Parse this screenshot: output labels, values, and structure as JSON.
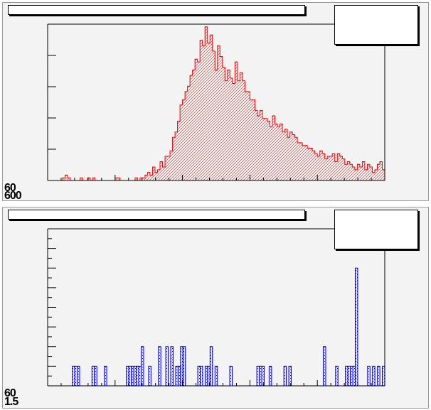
{
  "chart_data": [
    {
      "type": "bar",
      "style": "histogram",
      "color": "#ff0000",
      "fill_pattern": "diagonal-hatch",
      "title": "",
      "xlabel": "",
      "ylabel": "",
      "corner_labels": [
        "60",
        "600"
      ],
      "ylim": [
        0,
        58
      ],
      "values": [
        0,
        0,
        0,
        0,
        0,
        0,
        1,
        2,
        1,
        0,
        0,
        0,
        0,
        1,
        0,
        0,
        1,
        0,
        1,
        0,
        0,
        0,
        0,
        0,
        0,
        0,
        0,
        1,
        1,
        0,
        0,
        0,
        0,
        0,
        0,
        1,
        0,
        1,
        1,
        2,
        3,
        2,
        5,
        3,
        4,
        7,
        5,
        9,
        9,
        11,
        16,
        18,
        22,
        28,
        30,
        33,
        35,
        39,
        41,
        45,
        44,
        52,
        50,
        57,
        51,
        54,
        48,
        41,
        50,
        46,
        42,
        37,
        41,
        38,
        36,
        44,
        37,
        40,
        37,
        33,
        33,
        30,
        30,
        26,
        24,
        26,
        23,
        23,
        22,
        20,
        24,
        21,
        20,
        21,
        18,
        19,
        16,
        18,
        17,
        16,
        14,
        14,
        13,
        13,
        12,
        12,
        11,
        10,
        9,
        11,
        10,
        8,
        9,
        9,
        10,
        7,
        10,
        9,
        8,
        6,
        7,
        6,
        5,
        4,
        6,
        5,
        7,
        4,
        6,
        5,
        3,
        4,
        6,
        7,
        4
      ],
      "grid": false,
      "legend": "none"
    },
    {
      "type": "bar",
      "style": "histogram",
      "color": "#0000cc",
      "fill_pattern": "dot-hatch",
      "title": "",
      "xlabel": "",
      "ylabel": "",
      "corner_labels": [
        "60",
        "1.5"
      ],
      "ylim": [
        0,
        8
      ],
      "values": [
        0,
        0,
        0,
        0,
        0,
        0,
        0,
        0,
        0,
        0,
        1,
        1,
        1,
        0,
        0,
        0,
        0,
        0,
        1,
        1,
        0,
        0,
        0,
        1,
        0,
        0,
        0,
        0,
        0,
        0,
        0,
        0,
        1,
        1,
        1,
        1,
        1,
        1,
        2,
        0,
        0,
        1,
        0,
        0,
        0,
        2,
        0,
        0,
        2,
        0,
        2,
        0,
        1,
        1,
        2,
        2,
        0,
        0,
        0,
        0,
        0,
        1,
        1,
        0,
        1,
        1,
        2,
        0,
        1,
        0,
        0,
        0,
        0,
        0,
        1,
        0,
        0,
        0,
        0,
        0,
        0,
        0,
        0,
        0,
        0,
        1,
        1,
        1,
        0,
        0,
        1,
        0,
        0,
        0,
        0,
        0,
        1,
        0,
        1,
        0,
        0,
        0,
        0,
        0,
        0,
        0,
        0,
        0,
        0,
        0,
        0,
        0,
        2,
        0,
        0,
        0,
        0,
        1,
        0,
        0,
        0,
        1,
        1,
        1,
        1,
        6,
        0,
        0,
        0,
        0,
        1,
        0,
        1,
        0,
        1,
        0,
        1
      ],
      "grid": false,
      "legend": "none"
    }
  ]
}
